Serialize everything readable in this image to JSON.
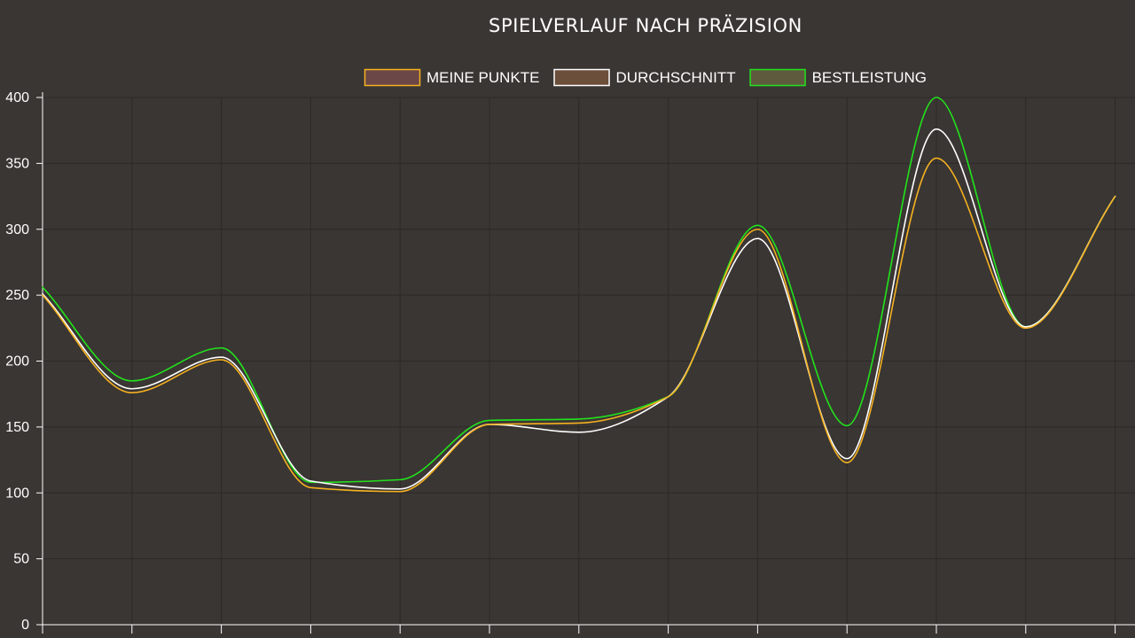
{
  "chart_data": {
    "type": "line",
    "title": "SPIELVERLAUF NACH PRÄZISION",
    "xlabel": "",
    "ylabel": "",
    "ylim": [
      0,
      400
    ],
    "yticks": [
      0,
      50,
      100,
      150,
      200,
      250,
      300,
      350,
      400
    ],
    "x": [
      1,
      2,
      3,
      4,
      5,
      6,
      7,
      8,
      9,
      10,
      11,
      12,
      13
    ],
    "grid": true,
    "legend_position": "top-center",
    "series": [
      {
        "name": "MEINE PUNKTE",
        "color": "#f5b120",
        "fill": "#6b4747",
        "values": [
          250,
          176,
          201,
          104,
          101,
          152,
          153,
          173,
          300,
          123,
          354,
          225,
          325
        ]
      },
      {
        "name": "DURCHSCHNITT",
        "color": "#ffffff",
        "fill": "#6b4f3a",
        "values": [
          251,
          179,
          203,
          109,
          103,
          152,
          146,
          173,
          293,
          126,
          376,
          226,
          325
        ]
      },
      {
        "name": "BESTLEISTUNG",
        "color": "#22e21c",
        "fill": "#5e5a3e",
        "values": [
          256,
          185,
          210,
          108,
          110,
          155,
          156,
          173,
          303,
          151,
          400,
          226,
          325
        ]
      }
    ]
  }
}
